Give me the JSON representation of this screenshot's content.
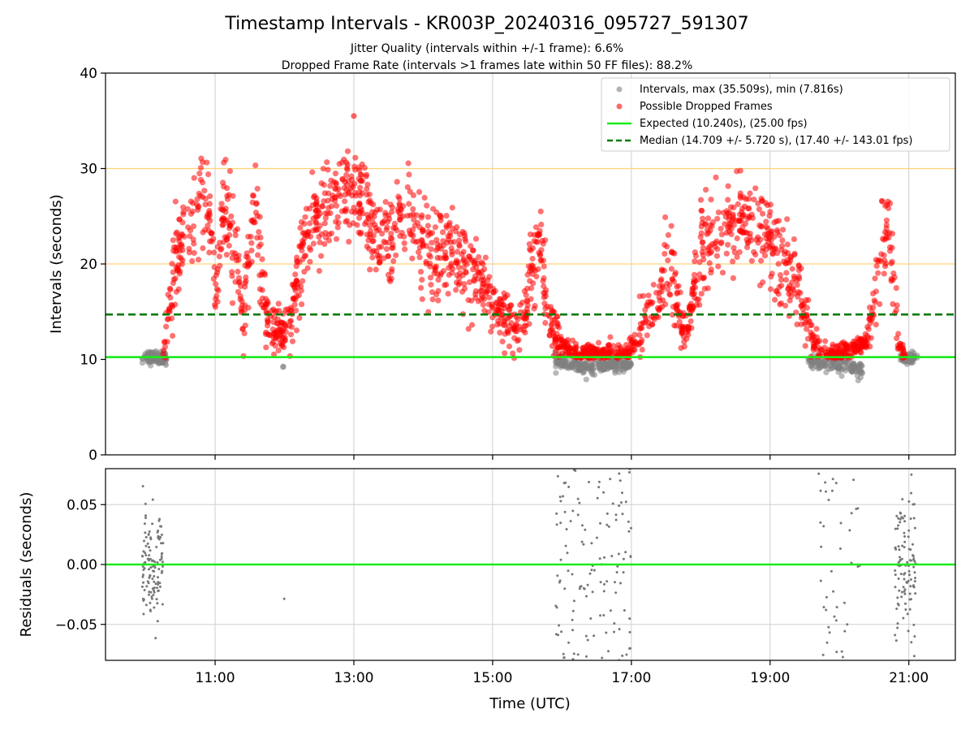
{
  "chart_data": [
    {
      "type": "scatter",
      "title": "Timestamp Intervals - KR003P_20240316_095727_591307",
      "subtitle_lines": [
        "Jitter Quality (intervals within +/-1 frame): 6.6%",
        "Dropped Frame Rate (intervals >1 frames late within 50 FF files): 88.2%"
      ],
      "xlabel": "",
      "ylabel": "Intervals (seconds)",
      "x_tick_labels": [
        "11:00",
        "13:00",
        "15:00",
        "17:00",
        "19:00",
        "21:00"
      ],
      "x_tick_hours": [
        11,
        13,
        15,
        17,
        19,
        21
      ],
      "xlim_hours": [
        9.42,
        21.67
      ],
      "ylim": [
        0,
        40
      ],
      "y_ticks": [
        0,
        10,
        20,
        30,
        40
      ],
      "y_tick_labels": [
        "0",
        "10",
        "20",
        "30",
        "40"
      ],
      "grid": true,
      "legend_position": "top-right",
      "horizontal_lines": [
        {
          "y": 20,
          "color": "#ffd27a"
        },
        {
          "y": 30,
          "color": "#ffd27a"
        }
      ],
      "legend": [
        {
          "label": "Intervals, max (35.509s), min (7.816s)",
          "marker": "dot",
          "color": "#808080"
        },
        {
          "label": "Possible Dropped Frames",
          "marker": "dot",
          "color": "#ff0000"
        },
        {
          "label": "Expected (10.240s), (25.00 fps)",
          "marker": "solid-line",
          "color": "#1aeb1a"
        },
        {
          "label": "Median (14.709 +/- 5.720 s), (17.40 +/- 143.01 fps)",
          "marker": "dashed-line",
          "color": "#007a00"
        }
      ],
      "expected_interval": 10.24,
      "median_interval": 14.709,
      "series": [
        {
          "name": "Intervals, max (35.509s), min (7.816s)",
          "color": "#808080",
          "profile": [
            [
              10.0,
              10.2
            ],
            [
              10.3,
              10.2
            ],
            [
              11.98,
              9.2
            ],
            [
              15.95,
              9.8
            ],
            [
              16.3,
              9.2
            ],
            [
              16.9,
              9.5
            ],
            [
              19.6,
              9.7
            ],
            [
              20.3,
              9.0
            ],
            [
              20.9,
              10.1
            ],
            [
              21.1,
              10.2
            ]
          ],
          "max": 35.509,
          "min": 7.816
        },
        {
          "name": "Possible Dropped Frames",
          "color": "#ff0000",
          "profile": [
            [
              10.25,
              10.5
            ],
            [
              10.35,
              16
            ],
            [
              10.45,
              20
            ],
            [
              10.6,
              23.5
            ],
            [
              10.8,
              26
            ],
            [
              10.95,
              24
            ],
            [
              11.0,
              15
            ],
            [
              11.1,
              25
            ],
            [
              11.3,
              22
            ],
            [
              11.4,
              14
            ],
            [
              11.5,
              23
            ],
            [
              11.6,
              25
            ],
            [
              11.65,
              20
            ],
            [
              11.7,
              16
            ],
            [
              11.8,
              13
            ],
            [
              12.0,
              13
            ],
            [
              12.1,
              15
            ],
            [
              12.2,
              20
            ],
            [
              12.4,
              24
            ],
            [
              12.6,
              26
            ],
            [
              12.9,
              27
            ],
            [
              13.1,
              27
            ],
            [
              13.2,
              25
            ],
            [
              13.5,
              23
            ],
            [
              13.8,
              24
            ],
            [
              14.0,
              22
            ],
            [
              14.3,
              21
            ],
            [
              14.6,
              20
            ],
            [
              14.9,
              17
            ],
            [
              15.1,
              15
            ],
            [
              15.3,
              13
            ],
            [
              15.45,
              14
            ],
            [
              15.5,
              16
            ],
            [
              15.6,
              20
            ],
            [
              15.7,
              22
            ],
            [
              15.75,
              18
            ],
            [
              15.8,
              14
            ],
            [
              16.0,
              11.5
            ],
            [
              16.2,
              10.5
            ],
            [
              16.5,
              10.5
            ],
            [
              16.8,
              10.5
            ],
            [
              17.0,
              11
            ],
            [
              17.2,
              14
            ],
            [
              17.4,
              16
            ],
            [
              17.5,
              21
            ],
            [
              17.6,
              18
            ],
            [
              17.7,
              14
            ],
            [
              17.8,
              12
            ],
            [
              17.9,
              17
            ],
            [
              18.0,
              21
            ],
            [
              18.2,
              23
            ],
            [
              18.5,
              25
            ],
            [
              18.8,
              24
            ],
            [
              19.0,
              22
            ],
            [
              19.2,
              20
            ],
            [
              19.4,
              18
            ],
            [
              19.5,
              15
            ],
            [
              19.6,
              12
            ],
            [
              19.8,
              10.5
            ],
            [
              20.2,
              11
            ],
            [
              20.4,
              12
            ],
            [
              20.5,
              16
            ],
            [
              20.6,
              21
            ],
            [
              20.7,
              24
            ],
            [
              20.8,
              17
            ],
            [
              20.85,
              11
            ],
            [
              20.95,
              10.5
            ]
          ],
          "max": 35.509
        }
      ]
    },
    {
      "type": "scatter",
      "title": "",
      "xlabel": "Time (UTC)",
      "ylabel": "Residuals (seconds)",
      "x_tick_labels": [
        "11:00",
        "13:00",
        "15:00",
        "17:00",
        "19:00",
        "21:00"
      ],
      "x_tick_hours": [
        11,
        13,
        15,
        17,
        19,
        21
      ],
      "xlim_hours": [
        9.42,
        21.67
      ],
      "ylim": [
        -0.08,
        0.08
      ],
      "y_ticks": [
        0.05,
        0.0,
        -0.05
      ],
      "y_tick_labels": [
        "0.05",
        "0.00",
        "−0.05"
      ],
      "grid": true,
      "reference_line": {
        "y": 0.0,
        "color": "#1aeb1a"
      },
      "series": [
        {
          "name": "",
          "color": "#777777",
          "clusters": [
            {
              "x_range": [
                9.95,
                10.25
              ],
              "count": 120,
              "spread": 0.022
            },
            {
              "x_range": [
                11.98,
                12.0
              ],
              "count": 2,
              "spread": 0.05
            },
            {
              "x_range": [
                15.9,
                17.0
              ],
              "count": 130,
              "spread": 0.07
            },
            {
              "x_range": [
                19.7,
                20.3
              ],
              "count": 40,
              "spread": 0.06
            },
            {
              "x_range": [
                20.8,
                21.1
              ],
              "count": 110,
              "spread": 0.03
            }
          ]
        }
      ]
    }
  ]
}
